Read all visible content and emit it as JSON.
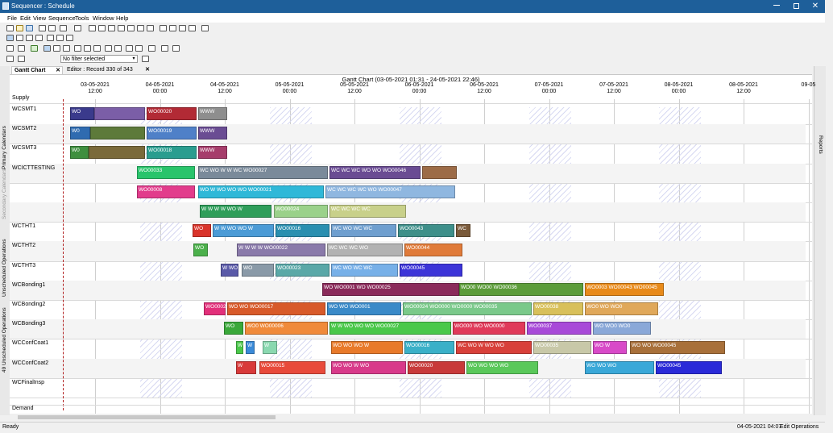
{
  "window": {
    "title": "Sequencer : Schedule"
  },
  "menu": [
    "File",
    "Edit",
    "View",
    "Sequence",
    "Tools",
    "Window",
    "Help"
  ],
  "toolbar": {
    "filter_value": "No filter selected"
  },
  "tabs": [
    {
      "label": "Gantt Chart",
      "active": true
    },
    {
      "label": "Editor : Record 330 of 343",
      "active": false
    }
  ],
  "left_panel": [
    "Primary Calendars",
    "Secondary Calendars",
    "Unscheduled Operations",
    "49 Unscheduled Operations"
  ],
  "right_panel": [
    "Reports"
  ],
  "gantt": {
    "title": "Gantt Chart",
    "range": "(03-05-2021 01:31 - 24-05-2021 22:46)",
    "dates": [
      {
        "d": "03-05-2021",
        "t": "12:00"
      },
      {
        "d": "04-05-2021",
        "t": "00:00"
      },
      {
        "d": "04-05-2021",
        "t": "12:00"
      },
      {
        "d": "05-05-2021",
        "t": "00:00"
      },
      {
        "d": "05-05-2021",
        "t": "12:00"
      },
      {
        "d": "06-05-2021",
        "t": "00:00"
      },
      {
        "d": "06-05-2021",
        "t": "12:00"
      },
      {
        "d": "07-05-2021",
        "t": "00:00"
      },
      {
        "d": "07-05-2021",
        "t": "12:00"
      },
      {
        "d": "08-05-2021",
        "t": "00:00"
      },
      {
        "d": "08-05-2021",
        "t": "12:00"
      },
      {
        "d": "09-05",
        "t": ""
      }
    ],
    "supply_label": "Supply",
    "demand_label": "Demand",
    "resources": [
      "WCSMT1",
      "WCSMT2",
      "WCSMT3",
      "WCICTTESTING",
      "",
      "",
      "WCTHT1",
      "WCTHT2",
      "WCTHT3",
      "WCBonding1",
      "WCBonding2",
      "WCBonding3",
      "WCConfCoat1",
      "WCConfCoat2",
      "WCFinalInsp"
    ],
    "bars": [
      {
        "r": 0,
        "s": 75,
        "e": 105,
        "c": "#3a3a8c",
        "t": "WO"
      },
      {
        "r": 0,
        "s": 105,
        "e": 168,
        "c": "#7b5ea7",
        "t": ""
      },
      {
        "r": 0,
        "s": 170,
        "e": 232,
        "c": "#b22a35",
        "t": "WO00020"
      },
      {
        "r": 0,
        "s": 234,
        "e": 270,
        "c": "#8e8e8e",
        "t": "WWW"
      },
      {
        "r": 1,
        "s": 75,
        "e": 100,
        "c": "#2f6bb0",
        "t": "W0"
      },
      {
        "r": 1,
        "s": 100,
        "e": 168,
        "c": "#5d7a3a",
        "t": ""
      },
      {
        "r": 1,
        "s": 170,
        "e": 232,
        "c": "#4f80c8",
        "t": "WO00019"
      },
      {
        "r": 1,
        "s": 234,
        "e": 270,
        "c": "#6a4c93",
        "t": "WWW"
      },
      {
        "r": 2,
        "s": 75,
        "e": 98,
        "c": "#3f8f3f",
        "t": "W0"
      },
      {
        "r": 2,
        "s": 98,
        "e": 168,
        "c": "#7a6a3a",
        "t": ""
      },
      {
        "r": 2,
        "s": 170,
        "e": 232,
        "c": "#2a9d8f",
        "t": "WO00018"
      },
      {
        "r": 2,
        "s": 234,
        "e": 270,
        "c": "#a63d6b",
        "t": "WWW"
      },
      {
        "r": 3,
        "s": 158,
        "e": 230,
        "c": "#29c46b",
        "t": "WO00033"
      },
      {
        "r": 3,
        "s": 234,
        "e": 395,
        "c": "#7a8a9a",
        "t": "WC WO W W WC WO00027"
      },
      {
        "r": 3,
        "s": 397,
        "e": 510,
        "c": "#6a4c93",
        "t": "WC WC WC WO WO WO00046"
      },
      {
        "r": 3,
        "s": 512,
        "e": 555,
        "c": "#9c6b47",
        "t": ""
      },
      {
        "r": 4,
        "s": 158,
        "e": 230,
        "c": "#e23c8c",
        "t": "WO00008"
      },
      {
        "r": 4,
        "s": 234,
        "e": 390,
        "c": "#2fb8d8",
        "t": "WO W WO WO WO WO00021"
      },
      {
        "r": 4,
        "s": 392,
        "e": 553,
        "c": "#8fb7e0",
        "t": "WC WC WC WC WO WO00047"
      },
      {
        "r": 5,
        "s": 236,
        "e": 325,
        "c": "#2f9e5a",
        "t": "W W W W WO W"
      },
      {
        "r": 5,
        "s": 328,
        "e": 395,
        "c": "#9ad18a",
        "t": "WO00024"
      },
      {
        "r": 5,
        "s": 397,
        "e": 492,
        "c": "#c8d08a",
        "t": "WC WC WC WC"
      },
      {
        "r": 6,
        "s": 227,
        "e": 250,
        "c": "#d9342b",
        "t": "WO"
      },
      {
        "r": 6,
        "s": 252,
        "e": 328,
        "c": "#4b9bd6",
        "t": "W W WO WO W"
      },
      {
        "r": 6,
        "s": 330,
        "e": 397,
        "c": "#2a8fb0",
        "t": "WO00016"
      },
      {
        "r": 6,
        "s": 399,
        "e": 480,
        "c": "#6f9fcf",
        "t": "WC WO WC WC"
      },
      {
        "r": 6,
        "s": 482,
        "e": 552,
        "c": "#3e8f8a",
        "t": "WO00043"
      },
      {
        "r": 6,
        "s": 554,
        "e": 572,
        "c": "#7a5a3a",
        "t": "WC"
      },
      {
        "r": 7,
        "s": 228,
        "e": 246,
        "c": "#4bb04b",
        "t": "WO"
      },
      {
        "r": 7,
        "s": 282,
        "e": 392,
        "c": "#8a7aaa",
        "t": "W W W W WO00022"
      },
      {
        "r": 7,
        "s": 394,
        "e": 488,
        "c": "#b2b2b2",
        "t": "WC WC WC WO"
      },
      {
        "r": 7,
        "s": 490,
        "e": 562,
        "c": "#e07b3a",
        "t": "WO00044"
      },
      {
        "r": 8,
        "s": 262,
        "e": 284,
        "c": "#5a5aa8",
        "t": "W WO"
      },
      {
        "r": 8,
        "s": 288,
        "e": 328,
        "c": "#8a9aa8",
        "t": "WO"
      },
      {
        "r": 8,
        "s": 330,
        "e": 397,
        "c": "#5aa8a8",
        "t": "WO00023"
      },
      {
        "r": 8,
        "s": 399,
        "e": 482,
        "c": "#77b0e8",
        "t": "WC WO WC WC"
      },
      {
        "r": 8,
        "s": 484,
        "e": 562,
        "c": "#3c34d8",
        "t": "WO00045"
      },
      {
        "r": 9,
        "s": 388,
        "e": 558,
        "c": "#8a2a5a",
        "t": "WO WO0001 WO WO00025"
      },
      {
        "r": 9,
        "s": 558,
        "e": 712,
        "c": "#5c9c3a",
        "t": "WO00 WO00 WO00036"
      },
      {
        "r": 9,
        "s": 714,
        "e": 812,
        "c": "#e88a1a",
        "t": "WO0003 WO00043 WO00045"
      },
      {
        "r": 10,
        "s": 241,
        "e": 268,
        "c": "#e2307a",
        "t": "WO0002"
      },
      {
        "r": 10,
        "s": 270,
        "e": 392,
        "c": "#d85a2a",
        "t": "WO WO WO00017"
      },
      {
        "r": 10,
        "s": 394,
        "e": 486,
        "c": "#3a8ac8",
        "t": "WO WO WO0001"
      },
      {
        "r": 10,
        "s": 488,
        "e": 648,
        "c": "#7ac98a",
        "t": "WO00024 WO0000 WO0000 WO00035"
      },
      {
        "r": 10,
        "s": 650,
        "e": 712,
        "c": "#d8c05a",
        "t": "WO00038"
      },
      {
        "r": 10,
        "s": 714,
        "e": 805,
        "c": "#e0a85a",
        "t": "WO0 WO WO0"
      },
      {
        "r": 11,
        "s": 266,
        "e": 290,
        "c": "#3aa83a",
        "t": "WO"
      },
      {
        "r": 11,
        "s": 292,
        "e": 395,
        "c": "#f08a3a",
        "t": "WO0 WO00006"
      },
      {
        "r": 11,
        "s": 397,
        "e": 548,
        "c": "#4ac84a",
        "t": "W W WO WO WO WO00027"
      },
      {
        "r": 11,
        "s": 550,
        "e": 640,
        "c": "#e03a5a",
        "t": "WO000 WO WO0000"
      },
      {
        "r": 11,
        "s": 642,
        "e": 722,
        "c": "#a84ad8",
        "t": "WO00037"
      },
      {
        "r": 11,
        "s": 724,
        "e": 796,
        "c": "#8aa8d8",
        "t": "WO WO0 WO0"
      },
      {
        "r": 12,
        "s": 281,
        "e": 290,
        "c": "#4ac84a",
        "t": "W"
      },
      {
        "r": 12,
        "s": 293,
        "e": 304,
        "c": "#3a8ad8",
        "t": "W"
      },
      {
        "r": 12,
        "s": 314,
        "e": 332,
        "c": "#8ad8b0",
        "t": "W"
      },
      {
        "r": 12,
        "s": 399,
        "e": 488,
        "c": "#e87a2a",
        "t": "WO WO WO W"
      },
      {
        "r": 12,
        "s": 490,
        "e": 552,
        "c": "#3ab0c8",
        "t": "WO00016"
      },
      {
        "r": 12,
        "s": 554,
        "e": 648,
        "c": "#d8403a",
        "t": "WC WO W WO WO"
      },
      {
        "r": 12,
        "s": 650,
        "e": 722,
        "c": "#c8c8a8",
        "t": "WO00035"
      },
      {
        "r": 12,
        "s": 724,
        "e": 766,
        "c": "#d84ac8",
        "t": "WO W"
      },
      {
        "r": 12,
        "s": 770,
        "e": 888,
        "c": "#a8703a",
        "t": "WO WO WO00045"
      },
      {
        "r": 13,
        "s": 281,
        "e": 306,
        "c": "#d83a3a",
        "t": "W"
      },
      {
        "r": 13,
        "s": 310,
        "e": 392,
        "c": "#e84a3a",
        "t": "WO00015"
      },
      {
        "r": 13,
        "s": 399,
        "e": 492,
        "c": "#d83a8a",
        "t": "WO WO W WO"
      },
      {
        "r": 13,
        "s": 494,
        "e": 565,
        "c": "#c83a3a",
        "t": "WO00020"
      },
      {
        "r": 13,
        "s": 567,
        "e": 656,
        "c": "#5ac85a",
        "t": "WO WO WO WO"
      },
      {
        "r": 13,
        "s": 714,
        "e": 800,
        "c": "#3aa8d8",
        "t": "WO WO WO"
      },
      {
        "r": 13,
        "s": 802,
        "e": 884,
        "c": "#2a2ad8",
        "t": "WO00045"
      }
    ]
  },
  "status": {
    "left": "Ready",
    "datetime": "04-05-2021 04:07",
    "mode": "Edit Operations"
  }
}
